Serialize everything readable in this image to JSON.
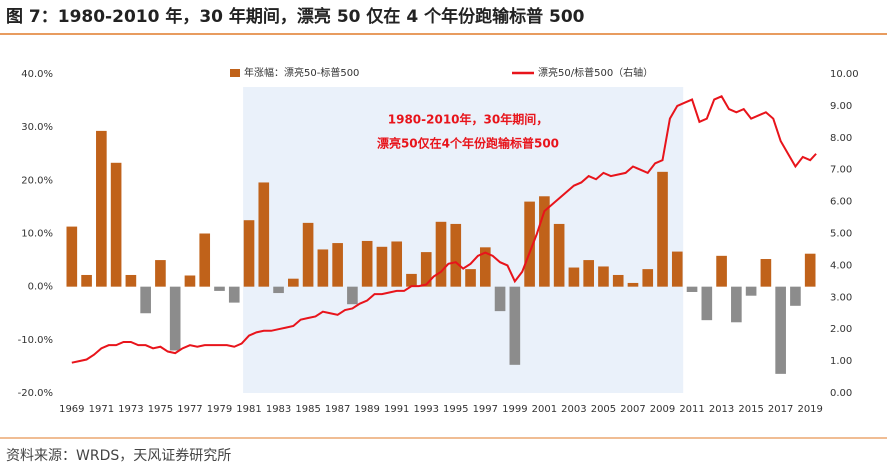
{
  "chart_data": {
    "type": "bar+line",
    "title": "图 7：1980-2010 年，30 年期间，漂亮 50 仅在 4 个年份跑输标普 500",
    "source": "资料来源：WRDS，天风证券研究所",
    "annotation": [
      "1980-2010年，30年期间，",
      "漂亮50仅在4个年份跑输标普500"
    ],
    "highlight_range": [
      1980.6,
      2010.4
    ],
    "x": [
      1969,
      1970,
      1971,
      1972,
      1973,
      1974,
      1975,
      1976,
      1977,
      1978,
      1979,
      1980,
      1981,
      1982,
      1983,
      1984,
      1985,
      1986,
      1987,
      1988,
      1989,
      1990,
      1991,
      1992,
      1993,
      1994,
      1995,
      1996,
      1997,
      1998,
      1999,
      2000,
      2001,
      2002,
      2003,
      2004,
      2005,
      2006,
      2007,
      2008,
      2009,
      2010,
      2011,
      2012,
      2013,
      2014,
      2015,
      2016,
      2017,
      2018,
      2019
    ],
    "xlim": [
      1968.2,
      2019.8
    ],
    "xticks": [
      1969,
      1971,
      1973,
      1975,
      1977,
      1979,
      1981,
      1983,
      1985,
      1987,
      1989,
      1991,
      1993,
      1995,
      1997,
      1999,
      2001,
      2003,
      2005,
      2007,
      2009,
      2011,
      2013,
      2015,
      2017,
      2019
    ],
    "ylim": [
      -20,
      40
    ],
    "yticks": [
      {
        "value": -20,
        "label": "-20.0%"
      },
      {
        "value": -10,
        "label": "-10.0%"
      },
      {
        "value": 0,
        "label": "0.0%"
      },
      {
        "value": 10,
        "label": "10.0%"
      },
      {
        "value": 20,
        "label": "20.0%"
      },
      {
        "value": 30,
        "label": "30.0%"
      },
      {
        "value": 40,
        "label": "40.0%"
      }
    ],
    "y2lim": [
      0,
      10
    ],
    "y2ticks": [
      {
        "value": 0,
        "label": "0.00"
      },
      {
        "value": 1,
        "label": "1.00"
      },
      {
        "value": 2,
        "label": "2.00"
      },
      {
        "value": 3,
        "label": "3.00"
      },
      {
        "value": 4,
        "label": "4.00"
      },
      {
        "value": 5,
        "label": "5.00"
      },
      {
        "value": 6,
        "label": "6.00"
      },
      {
        "value": 7,
        "label": "7.00"
      },
      {
        "value": 8,
        "label": "8.00"
      },
      {
        "value": 9,
        "label": "9.00"
      },
      {
        "value": 10,
        "label": "10.00"
      }
    ],
    "series": [
      {
        "name": "年涨幅：漂亮50-标普500",
        "type": "bar",
        "color": "#c0621a",
        "negative_color": "#8c8c8c",
        "values": [
          11.3,
          2.2,
          29.3,
          23.3,
          2.2,
          -5.0,
          5.0,
          -12.0,
          2.1,
          10.0,
          -0.8,
          -3.0,
          12.5,
          19.6,
          -1.2,
          1.5,
          12.0,
          7.0,
          8.2,
          -3.3,
          8.6,
          7.5,
          8.5,
          2.4,
          6.5,
          12.2,
          11.8,
          3.3,
          7.4,
          -4.6,
          -14.7,
          16.0,
          17.0,
          11.8,
          3.6,
          5.0,
          3.8,
          2.2,
          0.7,
          3.3,
          21.6,
          6.6,
          -1.0,
          -6.3,
          5.8,
          -6.7,
          -1.7,
          5.2,
          -16.4,
          -3.6,
          6.2
        ]
      },
      {
        "name": "漂亮50/标普500（右轴）",
        "type": "line",
        "axis": "y2",
        "color": "#e8141b",
        "x": [
          1969,
          1969.5,
          1970,
          1970.5,
          1971,
          1971.5,
          1972,
          1972.5,
          1973,
          1973.5,
          1974,
          1974.5,
          1975,
          1975.5,
          1976,
          1976.5,
          1977,
          1977.5,
          1978,
          1978.5,
          1979,
          1979.5,
          1980,
          1980.5,
          1981,
          1981.5,
          1982,
          1982.5,
          1983,
          1983.5,
          1984,
          1984.5,
          1985,
          1985.5,
          1986,
          1986.5,
          1987,
          1987.5,
          1988,
          1988.5,
          1989,
          1989.5,
          1990,
          1990.5,
          1991,
          1991.5,
          1992,
          1992.5,
          1993,
          1993.5,
          1994,
          1994.5,
          1995,
          1995.5,
          1996,
          1996.5,
          1997,
          1997.5,
          1998,
          1998.5,
          1999,
          1999.5,
          2000,
          2000.5,
          2001,
          2001.5,
          2002,
          2002.5,
          2003,
          2003.5,
          2004,
          2004.5,
          2005,
          2005.5,
          2006,
          2006.5,
          2007,
          2007.5,
          2008,
          2008.5,
          2009,
          2009.5,
          2010,
          2010.5,
          2011,
          2011.5,
          2012,
          2012.5,
          2013,
          2013.5,
          2014,
          2014.5,
          2015,
          2015.5,
          2016,
          2016.5,
          2017,
          2017.5,
          2018,
          2018.5,
          2019,
          2019.4
        ],
        "values": [
          0.95,
          1.0,
          1.05,
          1.2,
          1.4,
          1.5,
          1.5,
          1.6,
          1.6,
          1.5,
          1.5,
          1.4,
          1.45,
          1.3,
          1.25,
          1.4,
          1.5,
          1.45,
          1.5,
          1.5,
          1.5,
          1.5,
          1.45,
          1.55,
          1.8,
          1.9,
          1.95,
          1.95,
          2.0,
          2.05,
          2.1,
          2.3,
          2.35,
          2.4,
          2.55,
          2.5,
          2.45,
          2.6,
          2.65,
          2.8,
          2.9,
          3.1,
          3.1,
          3.15,
          3.2,
          3.2,
          3.35,
          3.35,
          3.4,
          3.65,
          3.8,
          4.05,
          4.1,
          3.9,
          4.05,
          4.3,
          4.4,
          4.3,
          4.1,
          4.0,
          3.5,
          3.8,
          4.4,
          5.0,
          5.7,
          5.9,
          6.1,
          6.3,
          6.5,
          6.6,
          6.8,
          6.7,
          6.9,
          6.8,
          6.85,
          6.9,
          7.1,
          7.0,
          6.9,
          7.2,
          7.3,
          8.6,
          9.0,
          9.1,
          9.2,
          8.5,
          8.6,
          9.2,
          9.3,
          8.9,
          8.8,
          8.9,
          8.6,
          8.7,
          8.8,
          8.6,
          7.9,
          7.5,
          7.1,
          7.4,
          7.3,
          7.5
        ]
      }
    ]
  }
}
